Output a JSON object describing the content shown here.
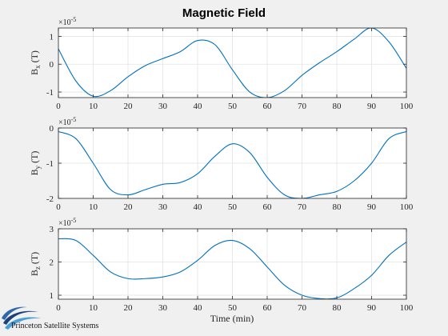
{
  "chart_data": {
    "title": "Magnetic Field",
    "xlabel": "Time (min)",
    "xlim": [
      0,
      100
    ],
    "x_ticks": [
      0,
      10,
      20,
      30,
      40,
      50,
      60,
      70,
      80,
      90,
      100
    ],
    "grid": true,
    "subplots": [
      {
        "type": "line",
        "ylabel_main": "B",
        "ylabel_sub": "x",
        "ylabel_unit": " (T)",
        "exponent_label": "×10",
        "exponent": "-5",
        "ylim": [
          -1.2,
          1.3
        ],
        "y_ticks": [
          1,
          0,
          -1
        ],
        "color": "#0072bd",
        "x": [
          0,
          5,
          10,
          15,
          20,
          25,
          30,
          35,
          40,
          45,
          50,
          55,
          60,
          65,
          70,
          75,
          80,
          85,
          90,
          95,
          100
        ],
        "values": [
          0.55,
          -0.6,
          -1.15,
          -0.95,
          -0.45,
          -0.05,
          0.2,
          0.45,
          0.85,
          0.7,
          -0.2,
          -1.0,
          -1.2,
          -0.95,
          -0.4,
          0.05,
          0.45,
          0.9,
          1.3,
          0.8,
          -0.15
        ]
      },
      {
        "type": "line",
        "ylabel_main": "B",
        "ylabel_sub": "y",
        "ylabel_unit": " (T)",
        "exponent_label": "×10",
        "exponent": "-5",
        "ylim": [
          -2.0,
          0.0
        ],
        "y_ticks": [
          0,
          -1,
          -2
        ],
        "color": "#0072bd",
        "x": [
          0,
          5,
          10,
          15,
          20,
          25,
          30,
          35,
          40,
          45,
          50,
          55,
          60,
          65,
          70,
          75,
          80,
          85,
          90,
          95,
          100
        ],
        "values": [
          -0.1,
          -0.3,
          -1.0,
          -1.75,
          -1.9,
          -1.75,
          -1.6,
          -1.55,
          -1.3,
          -0.8,
          -0.45,
          -0.7,
          -1.4,
          -1.9,
          -2.0,
          -1.9,
          -1.8,
          -1.5,
          -1.0,
          -0.3,
          -0.1
        ]
      },
      {
        "type": "line",
        "ylabel_main": "B",
        "ylabel_sub": "z",
        "ylabel_unit": " (T)",
        "exponent_label": "×10",
        "exponent": "-5",
        "ylim": [
          0.88,
          3.0
        ],
        "y_ticks": [
          3,
          2,
          1
        ],
        "color": "#0072bd",
        "x": [
          0,
          5,
          10,
          15,
          20,
          25,
          30,
          35,
          40,
          45,
          50,
          55,
          60,
          65,
          70,
          75,
          80,
          85,
          90,
          95,
          100
        ],
        "values": [
          2.7,
          2.65,
          2.2,
          1.7,
          1.5,
          1.5,
          1.55,
          1.7,
          2.05,
          2.5,
          2.65,
          2.4,
          1.85,
          1.3,
          1.0,
          0.9,
          0.92,
          1.2,
          1.6,
          2.2,
          2.6
        ]
      }
    ]
  },
  "logo": {
    "text": "Princeton Satellite Systems",
    "colors": [
      "#1f3f7a",
      "#4a9fd8"
    ]
  }
}
